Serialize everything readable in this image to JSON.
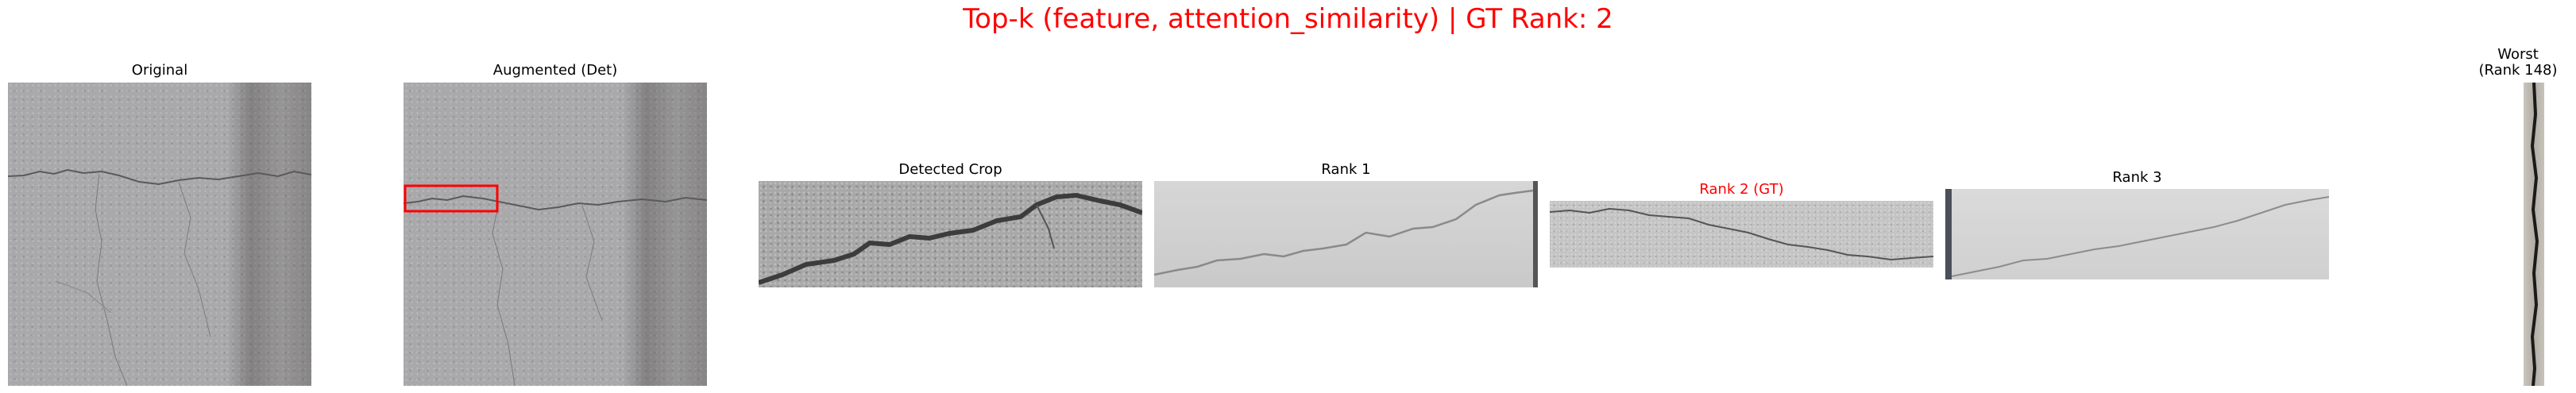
{
  "figure": {
    "title": "Top-k (feature, attention_similarity) | GT Rank: 2",
    "title_color": "#ff0000",
    "highlight_color": "#ff0000"
  },
  "panels": [
    {
      "key": "original",
      "label": "Original"
    },
    {
      "key": "augmented",
      "label": "Augmented (Det)"
    },
    {
      "key": "detected_crop",
      "label": "Detected Crop"
    },
    {
      "key": "rank1",
      "label": "Rank 1"
    },
    {
      "key": "rank2",
      "label": "Rank 2 (GT)",
      "is_ground_truth": true
    },
    {
      "key": "rank3",
      "label": "Rank 3"
    },
    {
      "key": "worst",
      "label_line1": "Worst",
      "label_line2": "(Rank 148)"
    }
  ]
}
